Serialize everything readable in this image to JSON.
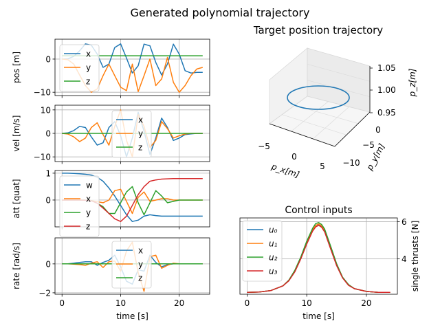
{
  "figure_title": "Generated polynomial trajectory",
  "colors": {
    "c0": "#1f77b4",
    "c1": "#ff7f0e",
    "c2": "#2ca02c",
    "c3": "#d62728",
    "grid": "#b0b0b0"
  },
  "chart_data": [
    {
      "id": "pos",
      "type": "line",
      "title": "",
      "xlabel": "",
      "ylabel": "pos [m]",
      "xlim": [
        -1.2,
        25.2
      ],
      "ylim": [
        -11,
        6
      ],
      "yticks": [
        0,
        -10
      ],
      "xticks": [
        0,
        10,
        20
      ],
      "grid": true,
      "legend": "upper-left",
      "series": [
        {
          "name": "x",
          "x": [
            0,
            1,
            2,
            3,
            4,
            5,
            6,
            7,
            8,
            9,
            10,
            11,
            12,
            13,
            14,
            15,
            16,
            17,
            18,
            19,
            20,
            21,
            22,
            23,
            24
          ],
          "values": [
            0,
            0.1,
            0.8,
            2.5,
            4.6,
            4.2,
            1.5,
            -2.5,
            -1.5,
            3.5,
            4.6,
            0.3,
            -4.2,
            -2,
            4.5,
            4,
            -1,
            -4.8,
            -1.5,
            4.5,
            1.5,
            -3.5,
            -4.2,
            -4,
            -4
          ]
        },
        {
          "name": "y",
          "x": [
            0,
            1,
            2,
            3,
            4,
            5,
            6,
            7,
            8,
            9,
            10,
            11,
            12,
            13,
            14,
            15,
            16,
            17,
            18,
            19,
            20,
            21,
            22,
            23,
            24
          ],
          "values": [
            0,
            -0.2,
            -1.5,
            -4.8,
            -8,
            -10,
            -9,
            -5,
            -1.5,
            -5,
            -8.5,
            -9.5,
            -1.5,
            -9.8,
            -5,
            0,
            -8,
            -6,
            0.5,
            -7,
            -10,
            -8,
            -5,
            -3,
            -2.5
          ]
        },
        {
          "name": "z",
          "x": [
            0,
            24
          ],
          "values": [
            1,
            1
          ]
        }
      ]
    },
    {
      "id": "vel",
      "type": "line",
      "xlabel": "",
      "ylabel": "vel [m/s]",
      "xlim": [
        -1.2,
        25.2
      ],
      "ylim": [
        -12,
        12
      ],
      "yticks": [
        10,
        0,
        -10
      ],
      "xticks": [
        0,
        10,
        20
      ],
      "grid": true,
      "legend": "upper-center",
      "series": [
        {
          "name": "x",
          "x": [
            0,
            1,
            2,
            3,
            4,
            5,
            6,
            7,
            8,
            9,
            10,
            11,
            12,
            13,
            14,
            15,
            16,
            17,
            18,
            19,
            20,
            21,
            22,
            23,
            24
          ],
          "values": [
            0,
            0.2,
            1.2,
            3,
            2.5,
            -1.5,
            -5,
            -4,
            2.5,
            5,
            -1,
            -10,
            -2,
            9,
            1,
            -9,
            -2,
            6.5,
            2.5,
            -3,
            -2,
            -0.5,
            -0.2,
            0,
            0
          ]
        },
        {
          "name": "y",
          "x": [
            0,
            1,
            2,
            3,
            4,
            5,
            6,
            7,
            8,
            9,
            10,
            11,
            12,
            13,
            14,
            15,
            16,
            17,
            18,
            19,
            20,
            21,
            22,
            23,
            24
          ],
          "values": [
            0,
            -0.3,
            -1.5,
            -3.5,
            -2,
            2.5,
            4.5,
            -0.5,
            -5,
            3,
            10,
            -3,
            -10,
            8,
            3,
            -6,
            -3,
            5,
            2,
            -2,
            -1,
            -0.3,
            0,
            0,
            0
          ]
        },
        {
          "name": "z",
          "x": [
            0,
            24
          ],
          "values": [
            0,
            0
          ]
        }
      ]
    },
    {
      "id": "att",
      "type": "line",
      "xlabel": "",
      "ylabel": "att [quat]",
      "xlim": [
        -1.2,
        25.2
      ],
      "ylim": [
        -1.0,
        1.1
      ],
      "yticks": [
        1,
        0
      ],
      "xticks": [
        0,
        10,
        20
      ],
      "grid": true,
      "legend": "upper-left",
      "series": [
        {
          "name": "w",
          "x": [
            0,
            1,
            2,
            3,
            4,
            5,
            6,
            7,
            8,
            9,
            10,
            11,
            12,
            13,
            14,
            15,
            16,
            17,
            18,
            19,
            20,
            21,
            22,
            23,
            24
          ],
          "values": [
            1,
            1,
            0.99,
            0.98,
            0.96,
            0.93,
            0.85,
            0.7,
            0.45,
            0.15,
            -0.2,
            -0.55,
            -0.8,
            -0.75,
            -0.6,
            -0.55,
            -0.58,
            -0.6,
            -0.6,
            -0.6,
            -0.6,
            -0.6,
            -0.6,
            -0.6,
            -0.6
          ]
        },
        {
          "name": "x",
          "x": [
            0,
            1,
            2,
            3,
            4,
            5,
            6,
            7,
            8,
            9,
            10,
            11,
            12,
            13,
            14,
            15,
            16,
            17,
            18,
            19,
            20,
            21,
            22,
            23,
            24
          ],
          "values": [
            0,
            0,
            0,
            0,
            0,
            -0.02,
            -0.06,
            -0.1,
            0,
            0.35,
            0.4,
            -0.05,
            -0.5,
            0.1,
            0.3,
            -0.05,
            0,
            0.05,
            0.05,
            0,
            0,
            0,
            0,
            0,
            0
          ]
        },
        {
          "name": "y",
          "x": [
            0,
            1,
            2,
            3,
            4,
            5,
            6,
            7,
            8,
            9,
            10,
            11,
            12,
            13,
            14,
            15,
            16,
            17,
            18,
            19,
            20,
            21,
            22,
            23,
            24
          ],
          "values": [
            0,
            0,
            0,
            0,
            0,
            -0.02,
            -0.12,
            -0.25,
            -0.5,
            -0.5,
            -0.1,
            0.3,
            0.5,
            -0.1,
            -0.55,
            -0.1,
            0.35,
            0.15,
            -0.1,
            -0.05,
            0,
            0,
            0,
            0,
            0
          ]
        },
        {
          "name": "z",
          "x": [
            0,
            1,
            2,
            3,
            4,
            5,
            6,
            7,
            8,
            9,
            10,
            11,
            12,
            13,
            14,
            15,
            16,
            17,
            18,
            19,
            20,
            21,
            22,
            23,
            24
          ],
          "values": [
            0,
            0,
            0,
            0,
            -0.01,
            -0.03,
            -0.12,
            -0.3,
            -0.5,
            -0.7,
            -0.8,
            -0.6,
            -0.2,
            0.2,
            0.5,
            0.7,
            0.75,
            0.78,
            0.79,
            0.8,
            0.8,
            0.8,
            0.8,
            0.8,
            0.8
          ]
        }
      ]
    },
    {
      "id": "rate",
      "type": "line",
      "xlabel": "time [s]",
      "ylabel": "rate [rad/s]",
      "xlim": [
        -1.2,
        25.2
      ],
      "ylim": [
        -2.1,
        1.8
      ],
      "yticks": [
        0,
        -2
      ],
      "xticks": [
        0,
        10,
        20
      ],
      "grid": true,
      "legend": "upper-center",
      "series": [
        {
          "name": "x",
          "x": [
            0,
            1,
            2,
            3,
            4,
            5,
            6,
            7,
            8,
            9,
            10,
            11,
            12,
            13,
            14,
            15,
            16,
            17,
            18,
            19,
            20,
            21,
            22,
            23,
            24
          ],
          "values": [
            0,
            0,
            0.05,
            0.1,
            0.15,
            0.15,
            -0.1,
            0.1,
            0.25,
            0.6,
            -0.2,
            -1.2,
            -1.4,
            -0.4,
            -0.5,
            0.6,
            0.1,
            -0.2,
            -0.05,
            0,
            0,
            0,
            0,
            0,
            0
          ]
        },
        {
          "name": "y",
          "x": [
            0,
            1,
            2,
            3,
            4,
            5,
            6,
            7,
            8,
            9,
            10,
            11,
            12,
            13,
            14,
            15,
            16,
            17,
            18,
            19,
            20,
            21,
            22,
            23,
            24
          ],
          "values": [
            0,
            0,
            -0.02,
            -0.05,
            -0.1,
            0.05,
            0.15,
            -0.25,
            0.15,
            0.2,
            -0.5,
            0.9,
            1.5,
            -0.6,
            -1.9,
            0.5,
            0.6,
            -0.3,
            -0.1,
            0.05,
            0,
            0,
            0,
            0,
            0
          ]
        },
        {
          "name": "z",
          "x": [
            0,
            24
          ],
          "values": [
            0,
            0
          ]
        }
      ]
    },
    {
      "id": "target3d",
      "type": "line3d",
      "title": "Target position trajectory",
      "xlabel": "p_x[m]",
      "ylabel": "p_y[m]",
      "zlabel": "p_z[m]",
      "xticks": [
        "−5",
        "0",
        "5"
      ],
      "yticks": [
        "0",
        "−5",
        "−10"
      ],
      "zticks": [
        "1.05",
        "1.00",
        "0.95"
      ],
      "series": [
        {
          "name": "",
          "path": "circle",
          "center_x": 0,
          "center_y": -5,
          "radius": 5,
          "z": 1.0
        }
      ]
    },
    {
      "id": "control",
      "type": "line",
      "title": "Control inputs",
      "xlabel": "time [s]",
      "ylabel": "single thrusts [N]",
      "xlim": [
        -1.2,
        25.2
      ],
      "ylim": [
        2.1,
        6.2
      ],
      "yticks": [
        6,
        4
      ],
      "xticks": [
        0,
        10,
        20
      ],
      "grid": true,
      "legend": "upper-left",
      "series": [
        {
          "name": "u₀",
          "x": [
            0,
            2,
            4,
            6,
            7,
            8,
            9,
            10,
            11,
            11.5,
            12,
            12.5,
            13,
            14,
            15,
            16,
            17,
            18,
            20,
            22,
            24
          ],
          "values": [
            2.2,
            2.22,
            2.3,
            2.55,
            2.85,
            3.35,
            4.05,
            4.85,
            5.55,
            5.8,
            5.85,
            5.75,
            5.5,
            4.6,
            3.7,
            3.0,
            2.6,
            2.4,
            2.25,
            2.2,
            2.2
          ]
        },
        {
          "name": "u₁",
          "x": [
            0,
            2,
            4,
            6,
            7,
            8,
            9,
            10,
            11,
            11.5,
            12,
            12.5,
            13,
            14,
            15,
            16,
            17,
            18,
            20,
            22,
            24
          ],
          "values": [
            2.2,
            2.22,
            2.3,
            2.55,
            2.85,
            3.35,
            4.05,
            4.85,
            5.55,
            5.8,
            5.88,
            5.78,
            5.55,
            4.65,
            3.72,
            3.0,
            2.6,
            2.4,
            2.25,
            2.2,
            2.2
          ]
        },
        {
          "name": "u₂",
          "x": [
            0,
            2,
            4,
            6,
            7,
            8,
            9,
            10,
            11,
            11.5,
            12,
            12.5,
            13,
            14,
            15,
            16,
            17,
            18,
            20,
            22,
            24
          ],
          "values": [
            2.2,
            2.22,
            2.3,
            2.55,
            2.85,
            3.38,
            4.1,
            4.95,
            5.65,
            5.9,
            5.95,
            5.85,
            5.6,
            4.7,
            3.75,
            3.02,
            2.62,
            2.4,
            2.25,
            2.2,
            2.2
          ]
        },
        {
          "name": "u₃",
          "x": [
            0,
            2,
            4,
            6,
            7,
            8,
            9,
            10,
            11,
            11.5,
            12,
            12.5,
            13,
            14,
            15,
            16,
            17,
            18,
            20,
            22,
            24
          ],
          "values": [
            2.2,
            2.22,
            2.3,
            2.55,
            2.82,
            3.3,
            4.0,
            4.8,
            5.5,
            5.72,
            5.8,
            5.7,
            5.45,
            4.55,
            3.65,
            2.98,
            2.58,
            2.4,
            2.25,
            2.2,
            2.2
          ]
        }
      ]
    }
  ]
}
